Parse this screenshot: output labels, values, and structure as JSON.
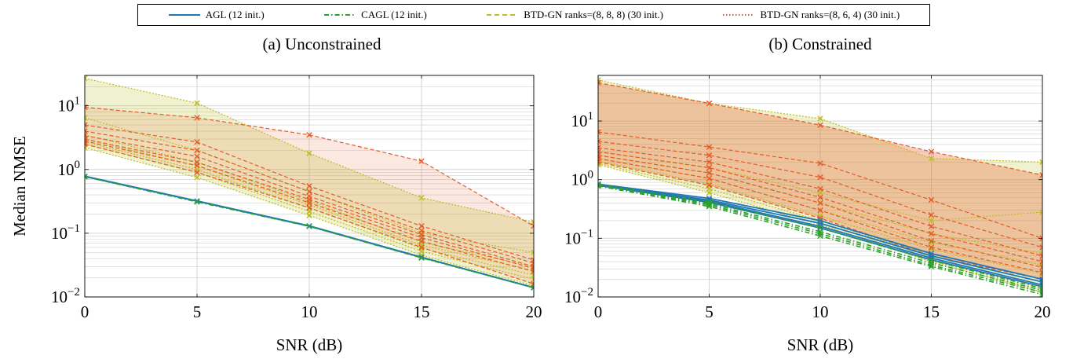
{
  "legend": [
    {
      "label": "AGL (12 init.)",
      "color": "#1f77b4",
      "dash": ""
    },
    {
      "label": "CAGL (12 init.)",
      "color": "#2ca02c",
      "dash": "6,3,1.5,3"
    },
    {
      "label": "BTD-GN ranks=(8, 8, 8) (30 init.)",
      "color": "#bcbd22",
      "dash": "6,4"
    },
    {
      "label": "BTD-GN ranks=(8, 6, 4) (30 init.)",
      "color": "#e45a29",
      "dash": "1.5,2.5"
    }
  ],
  "panels": [
    {
      "title": "(a) Unconstrained"
    },
    {
      "title": "(b) Constrained"
    }
  ],
  "chart_data": [
    {
      "type": "line",
      "title": "(a) Unconstrained",
      "xlabel": "SNR (dB)",
      "ylabel": "Median NMSE",
      "x": [
        0,
        5,
        10,
        15,
        20
      ],
      "xlim": [
        0,
        20
      ],
      "ylim": [
        0.01,
        30
      ],
      "yscale": "log",
      "grid": true,
      "xticks": [
        "0",
        "5",
        "10",
        "15",
        "20"
      ],
      "yticks": [
        {
          "value": 0.01,
          "mant": "10",
          "exp": "−2"
        },
        {
          "value": 0.1,
          "mant": "10",
          "exp": "−1"
        },
        {
          "value": 1,
          "mant": "10",
          "exp": "0"
        },
        {
          "value": 10,
          "mant": "10",
          "exp": "1"
        }
      ],
      "bands": [
        {
          "name": "BTD-GN ranks=(8, 8, 8) (30 init.)",
          "color": "#bcbd22",
          "opacity": 0.22,
          "upper": [
            27,
            11,
            1.8,
            0.36,
            0.15
          ],
          "lower": [
            2.2,
            0.75,
            0.19,
            0.045,
            0.015
          ]
        },
        {
          "name": "BTD-GN ranks=(8, 6, 4) (30 init.)",
          "color": "#e45a29",
          "opacity": 0.14,
          "upper": [
            9.5,
            6.5,
            3.5,
            1.35,
            0.13
          ],
          "lower": [
            2.5,
            0.9,
            0.25,
            0.06,
            0.016
          ]
        }
      ],
      "series": [
        {
          "name": "AGL (12 init.)",
          "color": "#1f77b4",
          "dash": "",
          "width": 2.2,
          "marker": "x",
          "values": [
            0.78,
            0.32,
            0.13,
            0.042,
            0.014
          ]
        },
        {
          "name": "CAGL (12 init.)",
          "color": "#2ca02c",
          "dash": "6,3,1.5,3",
          "width": 1.6,
          "marker": "x",
          "values": [
            0.77,
            0.31,
            0.128,
            0.041,
            0.014
          ]
        },
        {
          "name": "BTD-GN ranks=(8, 8, 8) (30 init.)",
          "color": "#bcbd22",
          "dash": "2,2",
          "width": 1.2,
          "marker": "x",
          "values": [
            27,
            11,
            1.8,
            0.36,
            0.15
          ]
        },
        {
          "name": "BTD-GN ranks=(8, 8, 8) (30 init.)",
          "color": "#bcbd22",
          "dash": "2,2",
          "width": 1.2,
          "marker": "x",
          "values": [
            6.5,
            2.0,
            0.45,
            0.1,
            0.05
          ]
        },
        {
          "name": "BTD-GN ranks=(8, 8, 8) (30 init.)",
          "color": "#bcbd22",
          "dash": "2,2",
          "width": 1.2,
          "marker": "x",
          "values": [
            3.5,
            1.3,
            0.32,
            0.072,
            0.03
          ]
        },
        {
          "name": "BTD-GN ranks=(8, 8, 8) (30 init.)",
          "color": "#bcbd22",
          "dash": "2,2",
          "width": 1.2,
          "marker": "x",
          "values": [
            3.0,
            1.15,
            0.28,
            0.065,
            0.026
          ]
        },
        {
          "name": "BTD-GN ranks=(8, 8, 8) (30 init.)",
          "color": "#bcbd22",
          "dash": "2,2",
          "width": 1.2,
          "marker": "x",
          "values": [
            2.7,
            1.0,
            0.25,
            0.058,
            0.022
          ]
        },
        {
          "name": "BTD-GN ranks=(8, 8, 8) (30 init.)",
          "color": "#bcbd22",
          "dash": "2,2",
          "width": 1.2,
          "marker": "x",
          "values": [
            2.5,
            0.9,
            0.22,
            0.052,
            0.019
          ]
        },
        {
          "name": "BTD-GN ranks=(8, 8, 8) (30 init.)",
          "color": "#bcbd22",
          "dash": "2,2",
          "width": 1.2,
          "marker": "x",
          "values": [
            2.2,
            0.75,
            0.19,
            0.045,
            0.015
          ]
        },
        {
          "name": "BTD-GN ranks=(8, 6, 4) (30 init.)",
          "color": "#e45a29",
          "dash": "5,3",
          "width": 1.2,
          "marker": "x",
          "values": [
            9.5,
            6.5,
            3.5,
            1.35,
            0.13
          ]
        },
        {
          "name": "BTD-GN ranks=(8, 6, 4) (30 init.)",
          "color": "#e45a29",
          "dash": "5,3",
          "width": 1.2,
          "marker": "x",
          "values": [
            5.0,
            2.7,
            0.55,
            0.13,
            0.038
          ]
        },
        {
          "name": "BTD-GN ranks=(8, 6, 4) (30 init.)",
          "color": "#e45a29",
          "dash": "5,3",
          "width": 1.2,
          "marker": "x",
          "values": [
            4.0,
            2.0,
            0.45,
            0.11,
            0.034
          ]
        },
        {
          "name": "BTD-GN ranks=(8, 6, 4) (30 init.)",
          "color": "#e45a29",
          "dash": "5,3",
          "width": 1.2,
          "marker": "x",
          "values": [
            3.4,
            1.6,
            0.38,
            0.095,
            0.03
          ]
        },
        {
          "name": "BTD-GN ranks=(8, 6, 4) (30 init.)",
          "color": "#e45a29",
          "dash": "5,3",
          "width": 1.2,
          "marker": "x",
          "values": [
            3.0,
            1.3,
            0.34,
            0.085,
            0.028
          ]
        },
        {
          "name": "BTD-GN ranks=(8, 6, 4) (30 init.)",
          "color": "#e45a29",
          "dash": "5,3",
          "width": 1.2,
          "marker": "x",
          "values": [
            2.8,
            1.15,
            0.3,
            0.075,
            0.025
          ]
        },
        {
          "name": "BTD-GN ranks=(8, 6, 4) (30 init.)",
          "color": "#e45a29",
          "dash": "5,3",
          "width": 1.2,
          "marker": "x",
          "values": [
            2.5,
            0.9,
            0.25,
            0.06,
            0.016
          ]
        }
      ]
    },
    {
      "type": "line",
      "title": "(b) Constrained",
      "xlabel": "SNR (dB)",
      "ylabel": "",
      "x": [
        0,
        5,
        10,
        15,
        20
      ],
      "xlim": [
        0,
        20
      ],
      "ylim": [
        0.01,
        60
      ],
      "yscale": "log",
      "grid": true,
      "xticks": [
        "0",
        "5",
        "10",
        "15",
        "20"
      ],
      "yticks": [
        {
          "value": 0.01,
          "mant": "10",
          "exp": "−2"
        },
        {
          "value": 0.1,
          "mant": "10",
          "exp": "−1"
        },
        {
          "value": 1,
          "mant": "10",
          "exp": "0"
        },
        {
          "value": 10,
          "mant": "10",
          "exp": "1"
        }
      ],
      "bands": [
        {
          "name": "BTD-GN ranks=(8, 8, 8) (30 init.)",
          "color": "#bcbd22",
          "opacity": 0.22,
          "upper": [
            50,
            20,
            11,
            2.3,
            2.0
          ],
          "lower": [
            1.8,
            0.6,
            0.17,
            0.04,
            0.012
          ]
        },
        {
          "name": "BTD-GN ranks=(8, 6, 4) (30 init.)",
          "color": "#e45a29",
          "opacity": 0.3,
          "upper": [
            45,
            20,
            8.5,
            3.0,
            1.2
          ],
          "lower": [
            2.0,
            0.8,
            0.22,
            0.05,
            0.02
          ]
        }
      ],
      "series": [
        {
          "name": "AGL (12 init.)",
          "color": "#1f77b4",
          "dash": "",
          "width": 1.8,
          "marker": "x",
          "values": [
            0.84,
            0.48,
            0.2,
            0.055,
            0.02
          ]
        },
        {
          "name": "AGL (12 init.)",
          "color": "#1f77b4",
          "dash": "",
          "width": 1.8,
          "marker": "x",
          "values": [
            0.82,
            0.45,
            0.18,
            0.05,
            0.018
          ]
        },
        {
          "name": "AGL (12 init.)",
          "color": "#1f77b4",
          "dash": "",
          "width": 1.8,
          "marker": "x",
          "values": [
            0.81,
            0.43,
            0.16,
            0.046,
            0.016
          ]
        },
        {
          "name": "AGL (12 init.)",
          "color": "#1f77b4",
          "dash": "",
          "width": 1.8,
          "marker": "x",
          "values": [
            0.8,
            0.41,
            0.15,
            0.043,
            0.015
          ]
        },
        {
          "name": "CAGL (12 init.)",
          "color": "#2ca02c",
          "dash": "6,3,1.5,3",
          "width": 1.6,
          "marker": "x",
          "values": [
            0.83,
            0.42,
            0.15,
            0.042,
            0.014
          ]
        },
        {
          "name": "CAGL (12 init.)",
          "color": "#2ca02c",
          "dash": "6,3,1.5,3",
          "width": 1.6,
          "marker": "x",
          "values": [
            0.81,
            0.39,
            0.13,
            0.038,
            0.013
          ]
        },
        {
          "name": "CAGL (12 init.)",
          "color": "#2ca02c",
          "dash": "6,3,1.5,3",
          "width": 1.6,
          "marker": "x",
          "values": [
            0.8,
            0.37,
            0.12,
            0.035,
            0.012
          ]
        },
        {
          "name": "CAGL (12 init.)",
          "color": "#2ca02c",
          "dash": "6,3,1.5,3",
          "width": 1.6,
          "marker": "x",
          "values": [
            0.78,
            0.35,
            0.11,
            0.033,
            0.011
          ]
        },
        {
          "name": "BTD-GN ranks=(8, 8, 8) (30 init.)",
          "color": "#bcbd22",
          "dash": "2,2",
          "width": 1.2,
          "marker": "x",
          "values": [
            50,
            20,
            11,
            2.3,
            2.0
          ]
        },
        {
          "name": "BTD-GN ranks=(8, 8, 8) (30 init.)",
          "color": "#bcbd22",
          "dash": "2,2",
          "width": 1.2,
          "marker": "x",
          "values": [
            3.0,
            1.6,
            0.6,
            0.2,
            0.28
          ]
        },
        {
          "name": "BTD-GN ranks=(8, 8, 8) (30 init.)",
          "color": "#bcbd22",
          "dash": "2,2",
          "width": 1.2,
          "marker": "x",
          "values": [
            2.6,
            1.3,
            0.4,
            0.12,
            0.055
          ]
        },
        {
          "name": "BTD-GN ranks=(8, 8, 8) (30 init.)",
          "color": "#bcbd22",
          "dash": "2,2",
          "width": 1.2,
          "marker": "x",
          "values": [
            2.3,
            1.05,
            0.3,
            0.085,
            0.035
          ]
        },
        {
          "name": "BTD-GN ranks=(8, 8, 8) (30 init.)",
          "color": "#bcbd22",
          "dash": "2,2",
          "width": 1.2,
          "marker": "x",
          "values": [
            2.1,
            0.85,
            0.24,
            0.065,
            0.025
          ]
        },
        {
          "name": "BTD-GN ranks=(8, 8, 8) (30 init.)",
          "color": "#bcbd22",
          "dash": "2,2",
          "width": 1.2,
          "marker": "x",
          "values": [
            1.9,
            0.7,
            0.2,
            0.05,
            0.018
          ]
        },
        {
          "name": "BTD-GN ranks=(8, 8, 8) (30 init.)",
          "color": "#bcbd22",
          "dash": "2,2",
          "width": 1.2,
          "marker": "x",
          "values": [
            1.8,
            0.6,
            0.17,
            0.04,
            0.012
          ]
        },
        {
          "name": "BTD-GN ranks=(8, 6, 4) (30 init.)",
          "color": "#e45a29",
          "dash": "5,3",
          "width": 1.2,
          "marker": "x",
          "values": [
            45,
            20,
            8.5,
            3.0,
            1.2
          ]
        },
        {
          "name": "BTD-GN ranks=(8, 6, 4) (30 init.)",
          "color": "#e45a29",
          "dash": "5,3",
          "width": 1.2,
          "marker": "x",
          "values": [
            6.5,
            3.6,
            1.9,
            0.45,
            0.1
          ]
        },
        {
          "name": "BTD-GN ranks=(8, 6, 4) (30 init.)",
          "color": "#e45a29",
          "dash": "5,3",
          "width": 1.2,
          "marker": "x",
          "values": [
            4.5,
            2.6,
            1.1,
            0.25,
            0.07
          ]
        },
        {
          "name": "BTD-GN ranks=(8, 6, 4) (30 init.)",
          "color": "#e45a29",
          "dash": "5,3",
          "width": 1.2,
          "marker": "x",
          "values": [
            3.5,
            2.0,
            0.7,
            0.16,
            0.05
          ]
        },
        {
          "name": "BTD-GN ranks=(8, 6, 4) (30 init.)",
          "color": "#e45a29",
          "dash": "5,3",
          "width": 1.2,
          "marker": "x",
          "values": [
            3.0,
            1.6,
            0.5,
            0.12,
            0.04
          ]
        },
        {
          "name": "BTD-GN ranks=(8, 6, 4) (30 init.)",
          "color": "#e45a29",
          "dash": "5,3",
          "width": 1.2,
          "marker": "x",
          "values": [
            2.6,
            1.3,
            0.4,
            0.09,
            0.032
          ]
        },
        {
          "name": "BTD-GN ranks=(8, 6, 4) (30 init.)",
          "color": "#e45a29",
          "dash": "5,3",
          "width": 1.2,
          "marker": "x",
          "values": [
            2.3,
            1.05,
            0.3,
            0.07,
            0.026
          ]
        },
        {
          "name": "BTD-GN ranks=(8, 6, 4) (30 init.)",
          "color": "#e45a29",
          "dash": "5,3",
          "width": 1.2,
          "marker": "x",
          "values": [
            2.0,
            0.8,
            0.22,
            0.05,
            0.02
          ]
        }
      ]
    }
  ]
}
